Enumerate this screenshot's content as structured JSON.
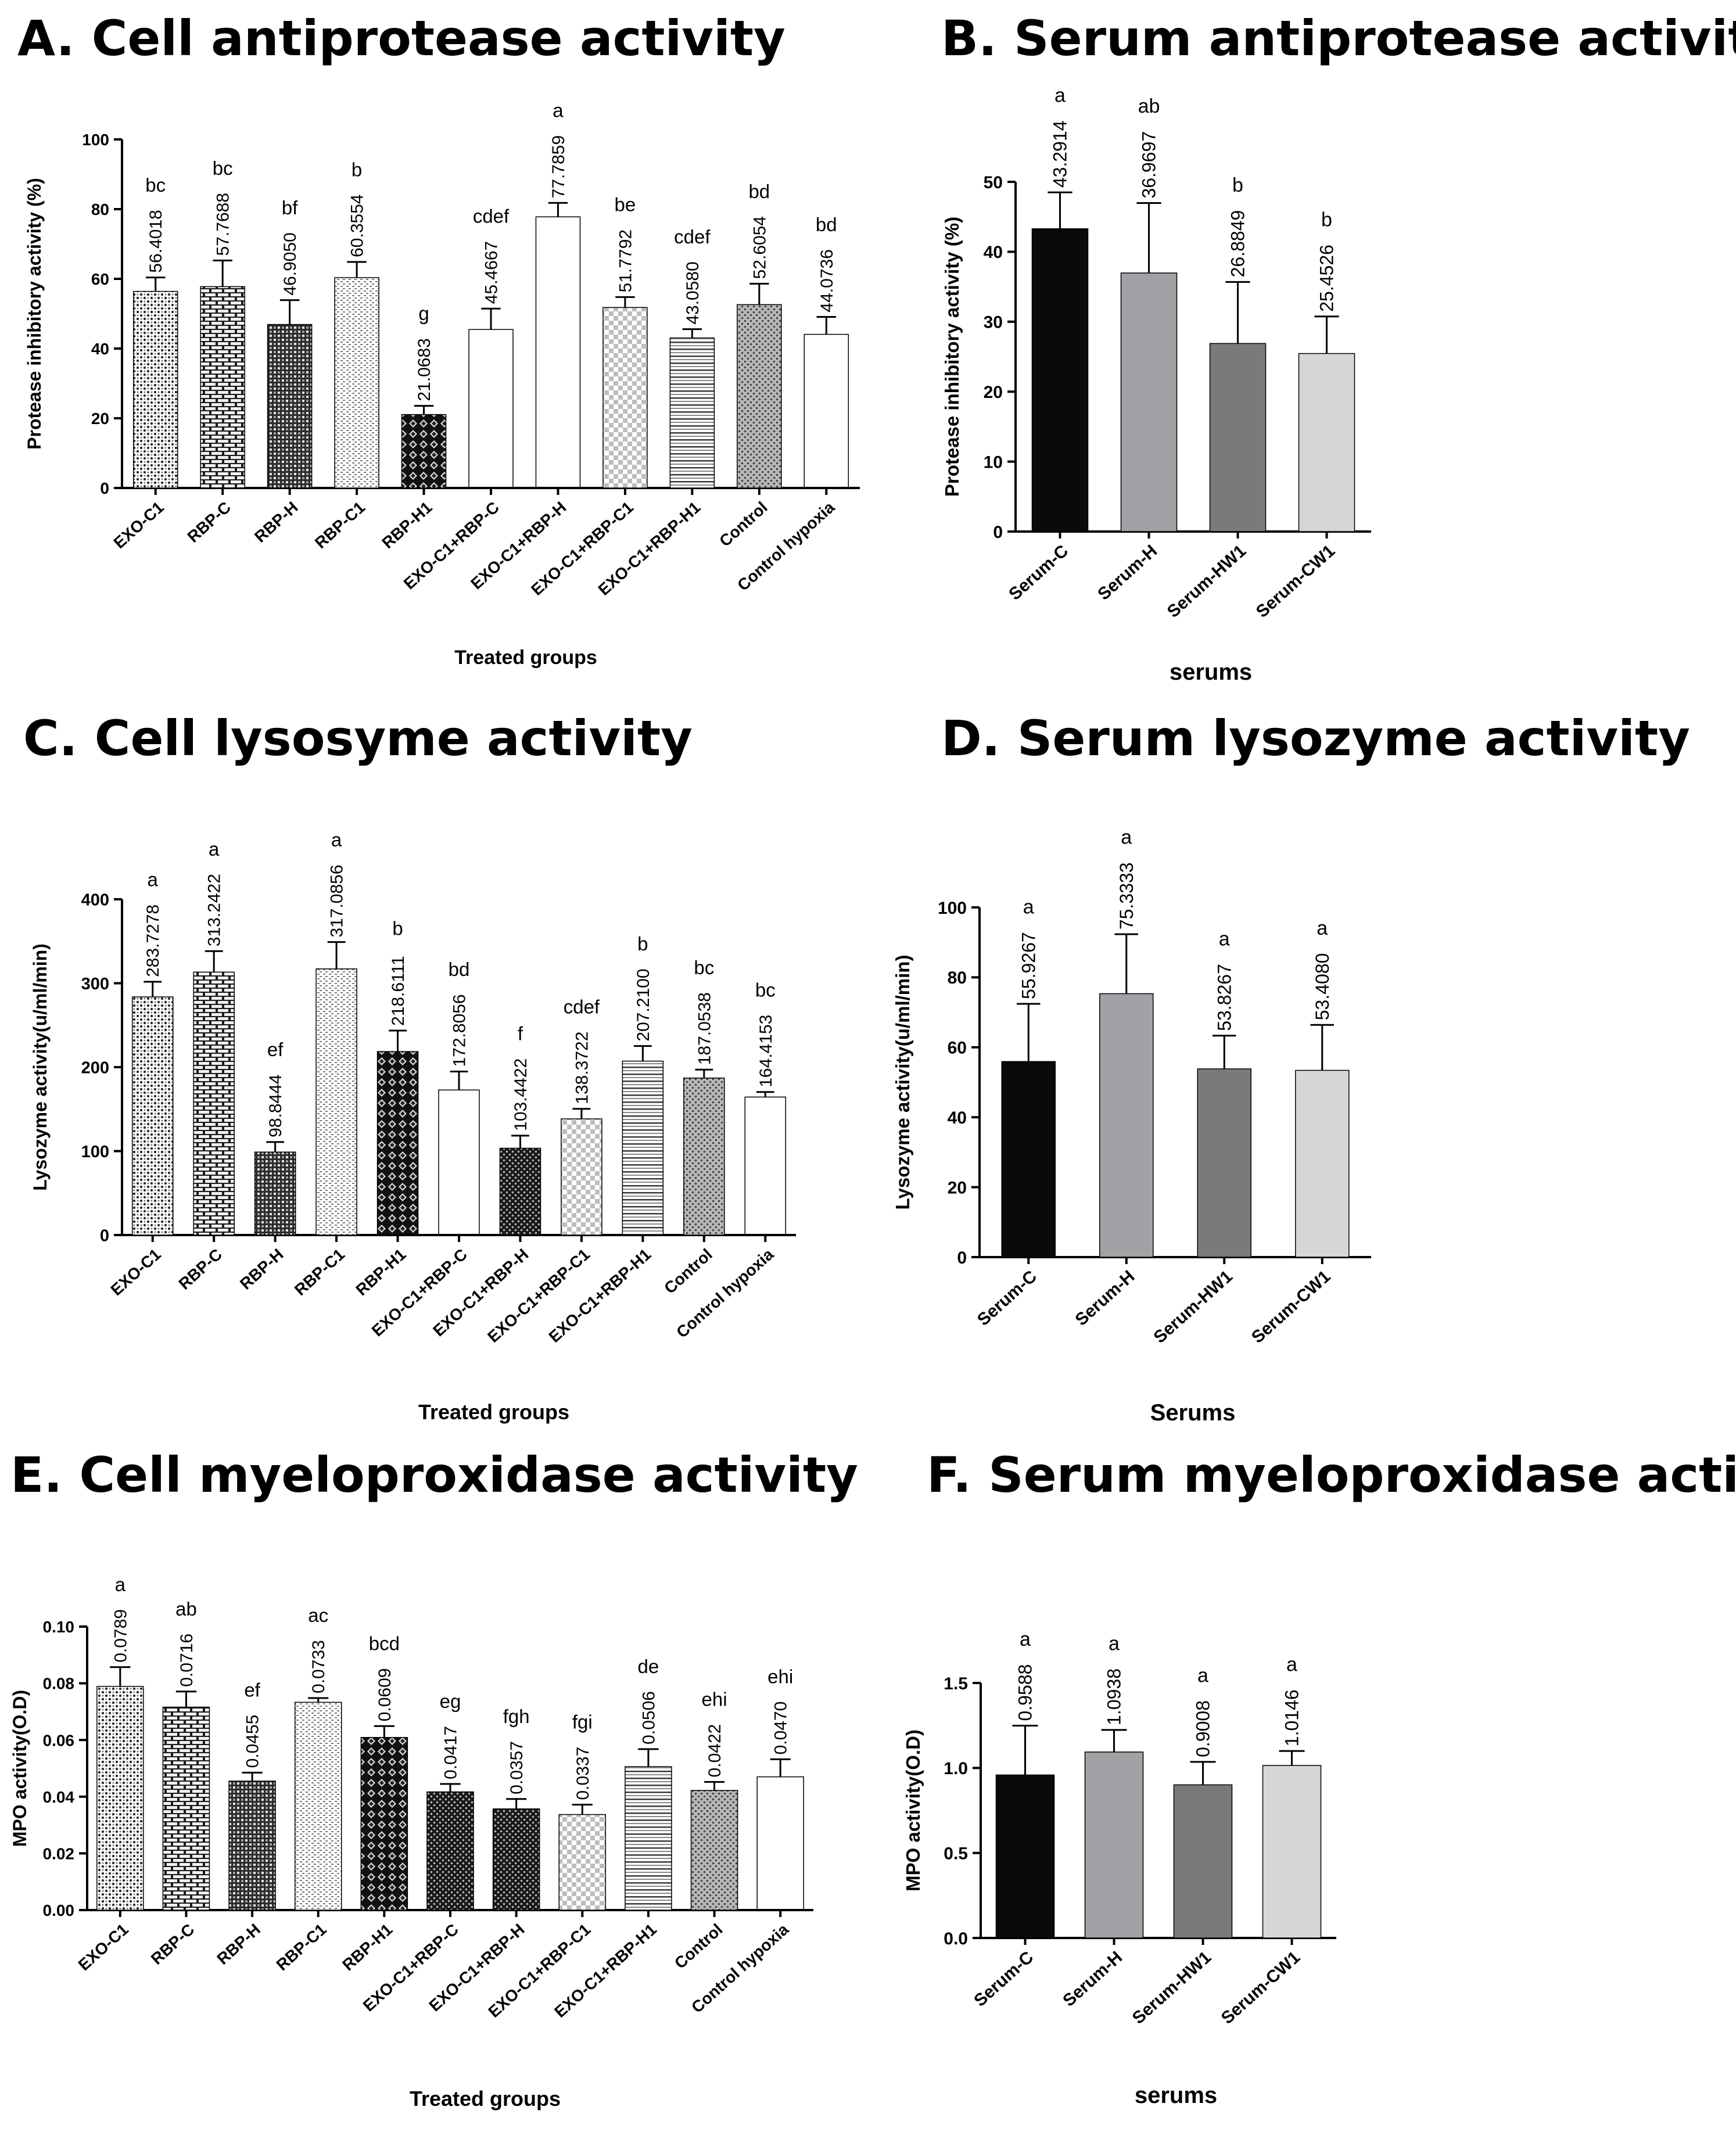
{
  "chart_data": [
    {
      "type": "bar",
      "panel": "A",
      "title": "A. Cell antiprotease activity",
      "xlabel": "Treated groups",
      "ylabel": "Protease inhibitory activity (%)",
      "ylim": [
        0,
        100
      ],
      "yticks": [
        "0",
        "20",
        "40",
        "60",
        "80",
        "100"
      ],
      "categories": [
        "EXO-C1",
        "RBP-C",
        "RBP-H",
        "RBP-C1",
        "RBP-H1",
        "EXO-C1+RBP-C",
        "EXO-C1+RBP-H",
        "EXO-C1+RBP-C1",
        "EXO-C1+RBP-H1",
        "Control",
        "Control hypoxia"
      ],
      "values": [
        56.4018,
        57.7688,
        46.905,
        60.3554,
        21.0683,
        45.4667,
        77.7859,
        51.7792,
        43.058,
        52.6054,
        44.0736
      ],
      "errors": [
        4.0,
        7.5,
        7.0,
        4.5,
        2.5,
        6.0,
        4.0,
        3.0,
        2.5,
        6.0,
        5.0
      ],
      "value_labels": [
        "56.4018",
        "57.7688",
        "46.9050",
        "60.3554",
        "21.0683",
        "45.4667",
        "77.7859",
        "51.7792",
        "43.0580",
        "52.6054",
        "44.0736"
      ],
      "significance": [
        "bc",
        "bc",
        "bf",
        "b",
        "g",
        "cdef",
        "a",
        "be",
        "cdef",
        "bd",
        "bd"
      ],
      "patterns": [
        "dots",
        "brick",
        "checker",
        "hlines-fine",
        "diamond",
        "solid-black",
        "solid-black",
        "diamond-light",
        "hlines",
        "dots-gray",
        "solid-gray"
      ]
    },
    {
      "type": "bar",
      "panel": "B",
      "title": "B. Serum antiprotease activity",
      "xlabel": "serums",
      "ylabel": "Protease inhibitory activity (%)",
      "ylim": [
        0,
        50
      ],
      "yticks": [
        "0",
        "10",
        "20",
        "30",
        "40",
        "50"
      ],
      "categories": [
        "Serum-C",
        "Serum-H",
        "Serum-HW1",
        "Serum-CW1"
      ],
      "values": [
        43.2914,
        36.9697,
        26.8849,
        25.4526
      ],
      "errors": [
        5.2,
        10.0,
        8.8,
        5.3
      ],
      "value_labels": [
        "43.2914",
        "36.9697",
        "26.8849",
        "25.4526"
      ],
      "significance": [
        "a",
        "ab",
        "b",
        "b"
      ],
      "colors": [
        "#0a0a0a",
        "#a2a2a6",
        "#7a7a7a",
        "#d6d6d6"
      ]
    },
    {
      "type": "bar",
      "panel": "C",
      "title": "C. Cell lysosyme activity",
      "xlabel": "Treated groups",
      "ylabel": "Lysozyme activity(u/ml/min)",
      "ylim": [
        0,
        400
      ],
      "yticks": [
        "0",
        "100",
        "200",
        "300",
        "400"
      ],
      "categories": [
        "EXO-C1",
        "RBP-C",
        "RBP-H",
        "RBP-C1",
        "RBP-H1",
        "EXO-C1+RBP-C",
        "EXO-C1+RBP-H",
        "EXO-C1+RBP-C1",
        "EXO-C1+RBP-H1",
        "Control",
        "Control hypoxia"
      ],
      "values": [
        283.7278,
        313.2422,
        98.8444,
        317.0856,
        218.6111,
        172.8056,
        103.4422,
        138.3722,
        207.21,
        187.0538,
        164.4153
      ],
      "errors": [
        18,
        25,
        12,
        32,
        25,
        22,
        15,
        12,
        18,
        10,
        6
      ],
      "value_labels": [
        "283.7278",
        "313.2422",
        "98.8444",
        "317.0856",
        "218.6111",
        "172.8056",
        "103.4422",
        "138.3722",
        "207.2100",
        "187.0538",
        "164.4153"
      ],
      "significance": [
        "a",
        "a",
        "ef",
        "a",
        "b",
        "bd",
        "f",
        "cdef",
        "b",
        "bc",
        "bc"
      ],
      "patterns": [
        "dots",
        "brick",
        "checker",
        "hlines-fine",
        "diamond",
        "solid-black",
        "dots-dark",
        "diamond-light",
        "hlines",
        "dots-gray",
        "solid-gray"
      ]
    },
    {
      "type": "bar",
      "panel": "D",
      "title": "D. Serum lysozyme activity",
      "xlabel": "Serums",
      "ylabel": "Lysozyme activity(u/ml/min)",
      "ylim": [
        0,
        100
      ],
      "yticks": [
        "0",
        "20",
        "40",
        "60",
        "80",
        "100"
      ],
      "categories": [
        "Serum-C",
        "Serum-H",
        "Serum-HW1",
        "Serum-CW1"
      ],
      "values": [
        55.9267,
        75.3333,
        53.8267,
        53.408
      ],
      "errors": [
        16.5,
        17.0,
        9.5,
        13.0
      ],
      "value_labels": [
        "55.9267",
        "75.3333",
        "53.8267",
        "53.4080"
      ],
      "significance": [
        "a",
        "a",
        "a",
        "a"
      ],
      "colors": [
        "#0a0a0a",
        "#a2a2a6",
        "#7a7a7a",
        "#d6d6d6"
      ]
    },
    {
      "type": "bar",
      "panel": "E",
      "title": "E. Cell myeloproxidase activity",
      "xlabel": "Treated groups",
      "ylabel": "MPO activity(O.D)",
      "ylim": [
        0,
        0.1
      ],
      "yticks": [
        "0.00",
        "0.02",
        "0.04",
        "0.06",
        "0.08",
        "0.10"
      ],
      "categories": [
        "EXO-C1",
        "RBP-C",
        "RBP-H",
        "RBP-C1",
        "RBP-H1",
        "EXO-C1+RBP-C",
        "EXO-C1+RBP-H",
        "EXO-C1+RBP-C1",
        "EXO-C1+RBP-H1",
        "Control",
        "Control hypoxia"
      ],
      "values": [
        0.0789,
        0.0716,
        0.0455,
        0.0733,
        0.0609,
        0.0417,
        0.0357,
        0.0337,
        0.0506,
        0.0422,
        0.047
      ],
      "errors": [
        0.0068,
        0.0055,
        0.003,
        0.0015,
        0.004,
        0.0028,
        0.0035,
        0.0035,
        0.0062,
        0.003,
        0.0062
      ],
      "value_labels": [
        "0.0789",
        "0.0716",
        "0.0455",
        "0.0733",
        "0.0609",
        "0.0417",
        "0.0357",
        "0.0337",
        "0.0506",
        "0.0422",
        "0.0470"
      ],
      "significance": [
        "a",
        "ab",
        "ef",
        "ac",
        "bcd",
        "eg",
        "fgh",
        "fgi",
        "de",
        "ehi",
        "ehi"
      ],
      "patterns": [
        "dots",
        "brick",
        "checker",
        "hlines-fine",
        "diamond",
        "dots-dark",
        "dots-dark",
        "diamond-light",
        "hlines",
        "dots-gray",
        "solid-gray"
      ]
    },
    {
      "type": "bar",
      "panel": "F",
      "title": "F. Serum myeloproxidase activity",
      "xlabel": "serums",
      "ylabel": "MPO activity(O.D)",
      "ylim": [
        0,
        1.5
      ],
      "yticks": [
        "0.0",
        "0.5",
        "1.0",
        "1.5"
      ],
      "categories": [
        "Serum-C",
        "Serum-H",
        "Serum-HW1",
        "Serum-CW1"
      ],
      "values": [
        0.9588,
        1.0938,
        0.9008,
        1.0146
      ],
      "errors": [
        0.29,
        0.13,
        0.135,
        0.085
      ],
      "value_labels": [
        "0.9588",
        "1.0938",
        "0.9008",
        "1.0146"
      ],
      "significance": [
        "a",
        "a",
        "a",
        "a"
      ],
      "colors": [
        "#0a0a0a",
        "#a2a2a6",
        "#7a7a7a",
        "#d6d6d6"
      ]
    }
  ]
}
